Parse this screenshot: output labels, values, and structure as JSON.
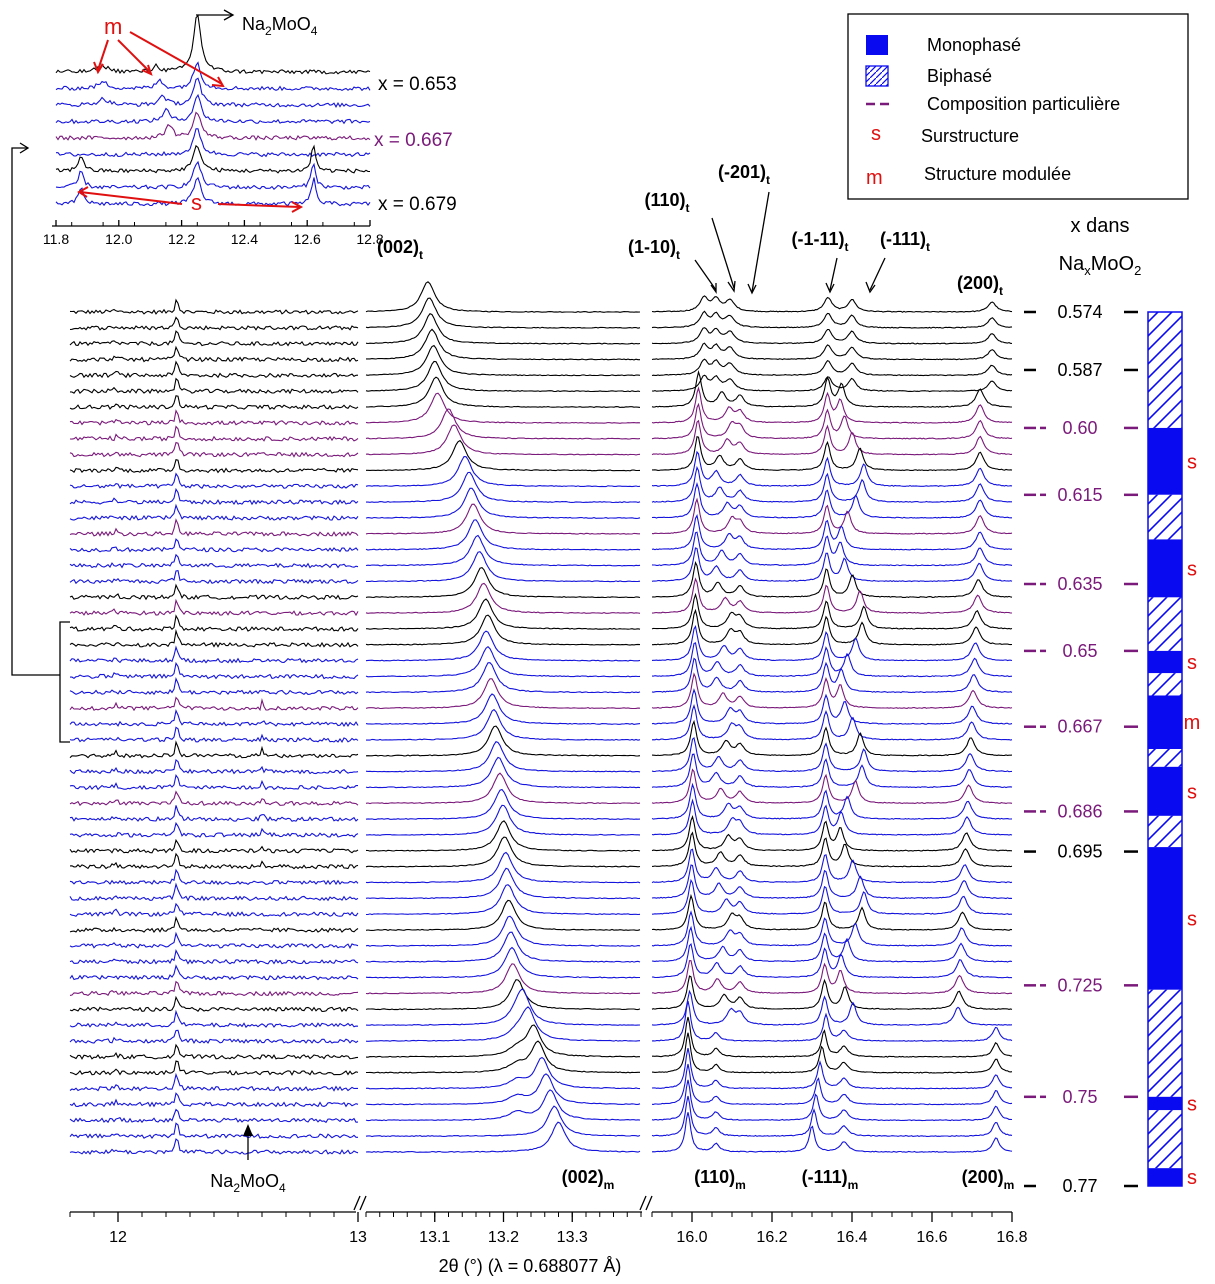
{
  "chart_data": {
    "type": "line",
    "xlabel": "2θ (°) (λ = 0.688077 Å)",
    "panels": [
      {
        "name": "left",
        "xlim": [
          11.8,
          13.0
        ],
        "ticks": [
          {
            "v": 12.0,
            "label": "12"
          },
          {
            "v": 13.0,
            "label": "13"
          }
        ]
      },
      {
        "name": "middle",
        "xlim": [
          13.0,
          13.4
        ],
        "ticks": [
          {
            "v": 13.1,
            "label": "13.1"
          },
          {
            "v": 13.2,
            "label": "13.2"
          },
          {
            "v": 13.3,
            "label": "13.3"
          }
        ]
      },
      {
        "name": "right",
        "xlim": [
          15.9,
          16.8
        ],
        "ticks": [
          {
            "v": 16.0,
            "label": "16.0"
          },
          {
            "v": 16.2,
            "label": "16.2"
          },
          {
            "v": 16.4,
            "label": "16.4"
          },
          {
            "v": 16.6,
            "label": "16.6"
          },
          {
            "v": 16.8,
            "label": "16.8"
          }
        ]
      }
    ],
    "pattern_count": 54,
    "pattern_colors": [
      "k",
      "k",
      "k",
      "k",
      "k",
      "k",
      "k",
      "p",
      "p",
      "p",
      "k",
      "b",
      "b",
      "b",
      "p",
      "b",
      "b",
      "b",
      "k",
      "p",
      "k",
      "k",
      "b",
      "b",
      "b",
      "p",
      "b",
      "b",
      "k",
      "b",
      "b",
      "p",
      "b",
      "b",
      "k",
      "k",
      "b",
      "b",
      "b",
      "k",
      "b",
      "b",
      "b",
      "p",
      "k",
      "b",
      "b",
      "k",
      "k",
      "b",
      "b",
      "b",
      "b",
      "b"
    ],
    "peaks_t": {
      "labels": [
        "(002)t",
        "(1-10)t",
        "(110)t",
        "(-201)t",
        "(-1-11)t",
        "(-111)t",
        "(200)t"
      ]
    },
    "peaks_m": {
      "labels": [
        "(002)m",
        "(110)m",
        "(-111)m",
        "(200)m"
      ]
    },
    "composition_label": "x dans NaxMoO2",
    "compositions": [
      {
        "x": "0.574",
        "color": "#000000"
      },
      {
        "x": "0.587",
        "color": "#000000"
      },
      {
        "x": "0.60",
        "color": "#7a1a7a"
      },
      {
        "x": "0.615",
        "color": "#7a1a7a"
      },
      {
        "x": "0.635",
        "color": "#7a1a7a"
      },
      {
        "x": "0.65",
        "color": "#7a1a7a"
      },
      {
        "x": "0.667",
        "color": "#7a1a7a"
      },
      {
        "x": "0.686",
        "color": "#7a1a7a"
      },
      {
        "x": "0.695",
        "color": "#000000"
      },
      {
        "x": "0.725",
        "color": "#7a1a7a"
      },
      {
        "x": "0.75",
        "color": "#7a1a7a"
      },
      {
        "x": "0.77",
        "color": "#000000"
      }
    ],
    "phase_bar": [
      {
        "from": 0.574,
        "to": 0.6,
        "phase": "Biphasé",
        "mark": ""
      },
      {
        "from": 0.6,
        "to": 0.615,
        "phase": "Monophasé",
        "mark": "s"
      },
      {
        "from": 0.615,
        "to": 0.625,
        "phase": "Biphasé",
        "mark": ""
      },
      {
        "from": 0.625,
        "to": 0.638,
        "phase": "Monophasé",
        "mark": "s"
      },
      {
        "from": 0.638,
        "to": 0.65,
        "phase": "Biphasé",
        "mark": ""
      },
      {
        "from": 0.65,
        "to": 0.655,
        "phase": "Monophasé",
        "mark": "s"
      },
      {
        "from": 0.655,
        "to": 0.66,
        "phase": "Biphasé",
        "mark": ""
      },
      {
        "from": 0.66,
        "to": 0.672,
        "phase": "Monophasé",
        "mark": "m"
      },
      {
        "from": 0.672,
        "to": 0.676,
        "phase": "Biphasé",
        "mark": ""
      },
      {
        "from": 0.676,
        "to": 0.687,
        "phase": "Monophasé",
        "mark": "s"
      },
      {
        "from": 0.687,
        "to": 0.694,
        "phase": "Biphasé",
        "mark": ""
      },
      {
        "from": 0.694,
        "to": 0.726,
        "phase": "Monophasé",
        "mark": "s"
      },
      {
        "from": 0.726,
        "to": 0.75,
        "phase": "Biphasé",
        "mark": ""
      },
      {
        "from": 0.75,
        "to": 0.753,
        "phase": "Monophasé",
        "mark": "s"
      },
      {
        "from": 0.753,
        "to": 0.766,
        "phase": "Biphasé",
        "mark": ""
      },
      {
        "from": 0.766,
        "to": 0.77,
        "phase": "Monophasé",
        "mark": "s"
      }
    ],
    "legend": [
      {
        "label": "Monophasé",
        "symbol": "solid"
      },
      {
        "label": "Biphasé",
        "symbol": "hatched"
      },
      {
        "label": "Composition particulière",
        "symbol": "dash"
      },
      {
        "label": "Surstructure",
        "symbol": "s"
      },
      {
        "label": "Structure modulée",
        "symbol": "m"
      }
    ],
    "legend_placement": "top-right",
    "inset": {
      "xlim": [
        11.8,
        12.8
      ],
      "ticks": [
        "11.8",
        "12.0",
        "12.2",
        "12.4",
        "12.6",
        "12.8"
      ],
      "labels": [
        "x = 0.653",
        "x = 0.667",
        "x = 0.679"
      ],
      "label_colors": [
        "#000000",
        "#7a1a7a",
        "#000000"
      ],
      "annotation_top": "Na2MoO4",
      "mark_m": "m",
      "mark_s": "s"
    },
    "impurity_label": "Na2MoO4",
    "colors": {
      "black": "#000000",
      "blue": "#1414dc",
      "purple": "#7a1a7a",
      "red": "#e01010",
      "bar": "#0a0af0"
    }
  }
}
